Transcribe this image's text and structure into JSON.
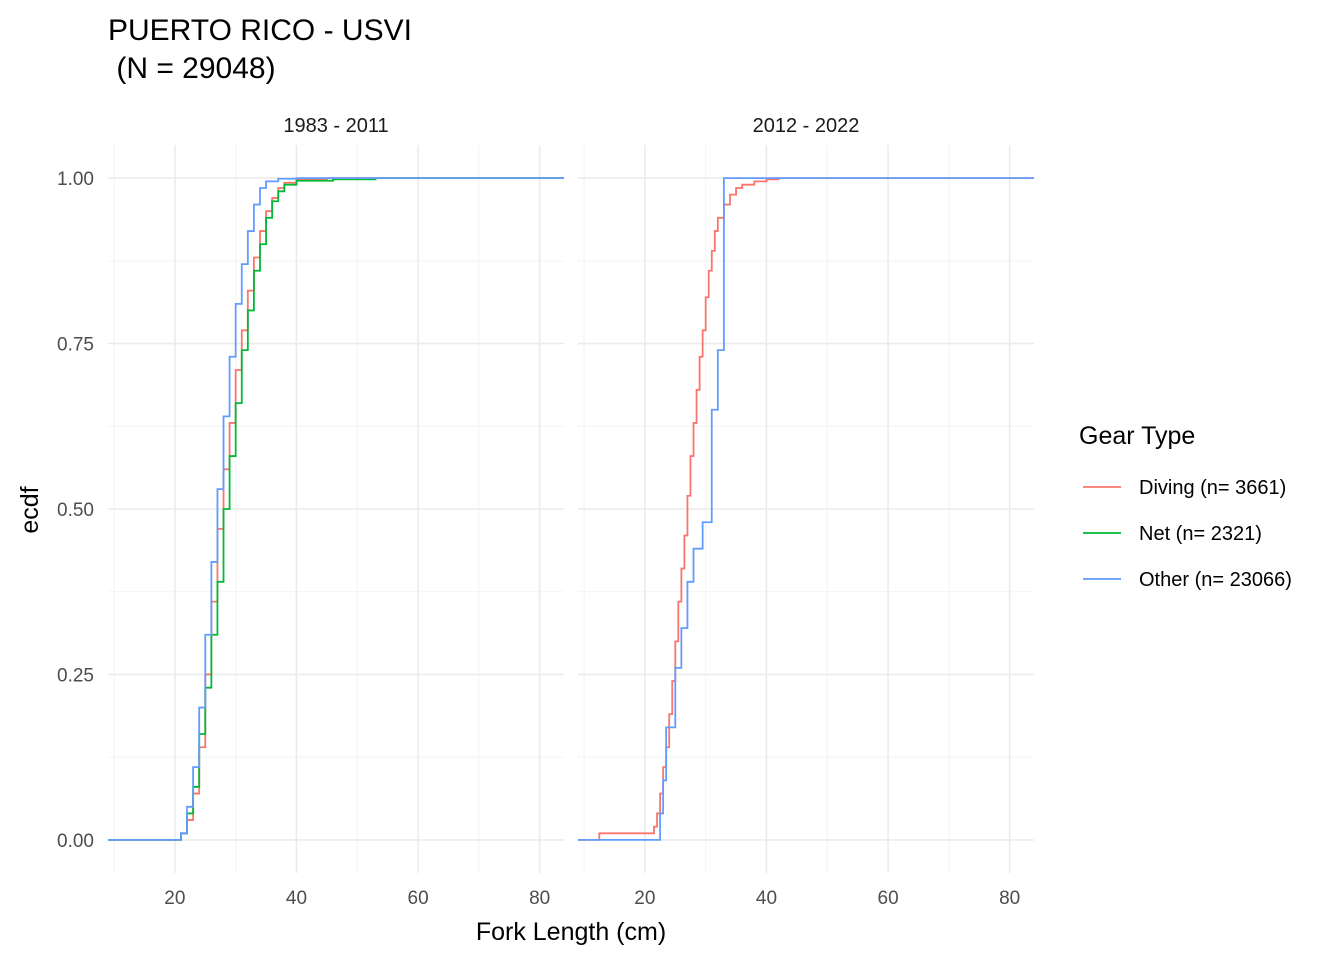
{
  "chart_data": {
    "type": "line",
    "title_line1": "PUERTO RICO - USVI",
    "title_line2": " (N = 29048)",
    "xlabel": "Fork Length (cm)",
    "ylabel": "ecdf",
    "xlim": [
      9,
      84
    ],
    "ylim": [
      -0.05,
      1.05
    ],
    "x_ticks": [
      20,
      40,
      60,
      80
    ],
    "y_ticks": [
      0,
      0.25,
      0.5,
      0.75,
      1
    ],
    "y_tick_labels": [
      "0.00",
      "0.25",
      "0.50",
      "0.75",
      "1.00"
    ],
    "grid": true,
    "legend": {
      "title": "Gear Type",
      "position": "right",
      "entries": [
        {
          "label": "Diving (n= 3661)",
          "color": "#F8766D"
        },
        {
          "label": "Net (n= 2321)",
          "color": "#00BA38"
        },
        {
          "label": "Other (n= 23066)",
          "color": "#619CFF"
        }
      ]
    },
    "panels": [
      {
        "strip": "1983 - 2011",
        "series": [
          {
            "name": "Diving (n= 3661)",
            "color": "#F8766D",
            "points": [
              [
                9,
                0
              ],
              [
                20,
                0
              ],
              [
                21,
                0.01
              ],
              [
                22,
                0.03
              ],
              [
                23,
                0.07
              ],
              [
                24,
                0.14
              ],
              [
                25,
                0.25
              ],
              [
                26,
                0.36
              ],
              [
                27,
                0.47
              ],
              [
                28,
                0.56
              ],
              [
                29,
                0.63
              ],
              [
                30,
                0.71
              ],
              [
                31,
                0.77
              ],
              [
                32,
                0.83
              ],
              [
                33,
                0.88
              ],
              [
                34,
                0.92
              ],
              [
                35,
                0.95
              ],
              [
                36,
                0.97
              ],
              [
                37,
                0.985
              ],
              [
                38,
                0.993
              ],
              [
                40,
                0.998
              ],
              [
                45,
                1
              ],
              [
                84,
                1
              ]
            ]
          },
          {
            "name": "Net (n= 2321)",
            "color": "#00BA38",
            "points": [
              [
                9,
                0
              ],
              [
                20,
                0
              ],
              [
                21,
                0.01
              ],
              [
                22,
                0.04
              ],
              [
                23,
                0.08
              ],
              [
                24,
                0.16
              ],
              [
                25,
                0.23
              ],
              [
                26,
                0.31
              ],
              [
                27,
                0.39
              ],
              [
                28,
                0.5
              ],
              [
                29,
                0.58
              ],
              [
                30,
                0.66
              ],
              [
                31,
                0.74
              ],
              [
                32,
                0.8
              ],
              [
                33,
                0.86
              ],
              [
                34,
                0.9
              ],
              [
                35,
                0.94
              ],
              [
                36,
                0.965
              ],
              [
                37,
                0.98
              ],
              [
                38,
                0.99
              ],
              [
                40,
                0.996
              ],
              [
                46,
                0.998
              ],
              [
                53,
                1
              ],
              [
                84,
                1
              ]
            ]
          },
          {
            "name": "Other (n= 23066)",
            "color": "#619CFF",
            "points": [
              [
                9,
                0
              ],
              [
                20,
                0
              ],
              [
                21,
                0.01
              ],
              [
                22,
                0.05
              ],
              [
                23,
                0.11
              ],
              [
                24,
                0.2
              ],
              [
                25,
                0.31
              ],
              [
                26,
                0.42
              ],
              [
                27,
                0.53
              ],
              [
                28,
                0.64
              ],
              [
                29,
                0.73
              ],
              [
                30,
                0.81
              ],
              [
                31,
                0.87
              ],
              [
                32,
                0.92
              ],
              [
                33,
                0.96
              ],
              [
                34,
                0.985
              ],
              [
                35,
                0.995
              ],
              [
                37,
                0.999
              ],
              [
                40,
                1
              ],
              [
                84,
                1
              ]
            ]
          }
        ]
      },
      {
        "strip": "2012 - 2022",
        "series": [
          {
            "name": "Diving (n= 3661)",
            "color": "#F8766D",
            "points": [
              [
                9,
                0
              ],
              [
                12,
                0
              ],
              [
                12.5,
                0.01
              ],
              [
                21,
                0.01
              ],
              [
                21.5,
                0.02
              ],
              [
                22,
                0.04
              ],
              [
                22.5,
                0.07
              ],
              [
                23,
                0.11
              ],
              [
                23.5,
                0.14
              ],
              [
                24,
                0.19
              ],
              [
                24.5,
                0.24
              ],
              [
                25,
                0.3
              ],
              [
                25.5,
                0.36
              ],
              [
                26,
                0.41
              ],
              [
                26.5,
                0.46
              ],
              [
                27,
                0.52
              ],
              [
                27.5,
                0.58
              ],
              [
                28,
                0.63
              ],
              [
                28.5,
                0.68
              ],
              [
                29,
                0.73
              ],
              [
                29.5,
                0.77
              ],
              [
                30,
                0.82
              ],
              [
                30.5,
                0.86
              ],
              [
                31,
                0.89
              ],
              [
                31.5,
                0.92
              ],
              [
                32,
                0.94
              ],
              [
                33,
                0.96
              ],
              [
                34,
                0.975
              ],
              [
                35,
                0.985
              ],
              [
                36,
                0.99
              ],
              [
                38,
                0.995
              ],
              [
                40,
                0.998
              ],
              [
                42,
                1
              ],
              [
                84,
                1
              ]
            ]
          },
          {
            "name": "Other (n= 23066)",
            "color": "#619CFF",
            "points": [
              [
                9,
                0
              ],
              [
                22.5,
                0
              ],
              [
                22.5,
                0.04
              ],
              [
                23,
                0.04
              ],
              [
                23,
                0.09
              ],
              [
                23.5,
                0.09
              ],
              [
                23.5,
                0.17
              ],
              [
                25,
                0.17
              ],
              [
                25,
                0.26
              ],
              [
                26,
                0.26
              ],
              [
                26,
                0.32
              ],
              [
                27,
                0.32
              ],
              [
                27,
                0.39
              ],
              [
                28,
                0.39
              ],
              [
                28,
                0.44
              ],
              [
                29.5,
                0.44
              ],
              [
                29.5,
                0.48
              ],
              [
                31,
                0.48
              ],
              [
                31,
                0.65
              ],
              [
                32,
                0.65
              ],
              [
                32,
                0.74
              ],
              [
                33,
                0.74
              ],
              [
                33,
                1
              ],
              [
                84,
                1
              ]
            ]
          }
        ]
      }
    ]
  }
}
